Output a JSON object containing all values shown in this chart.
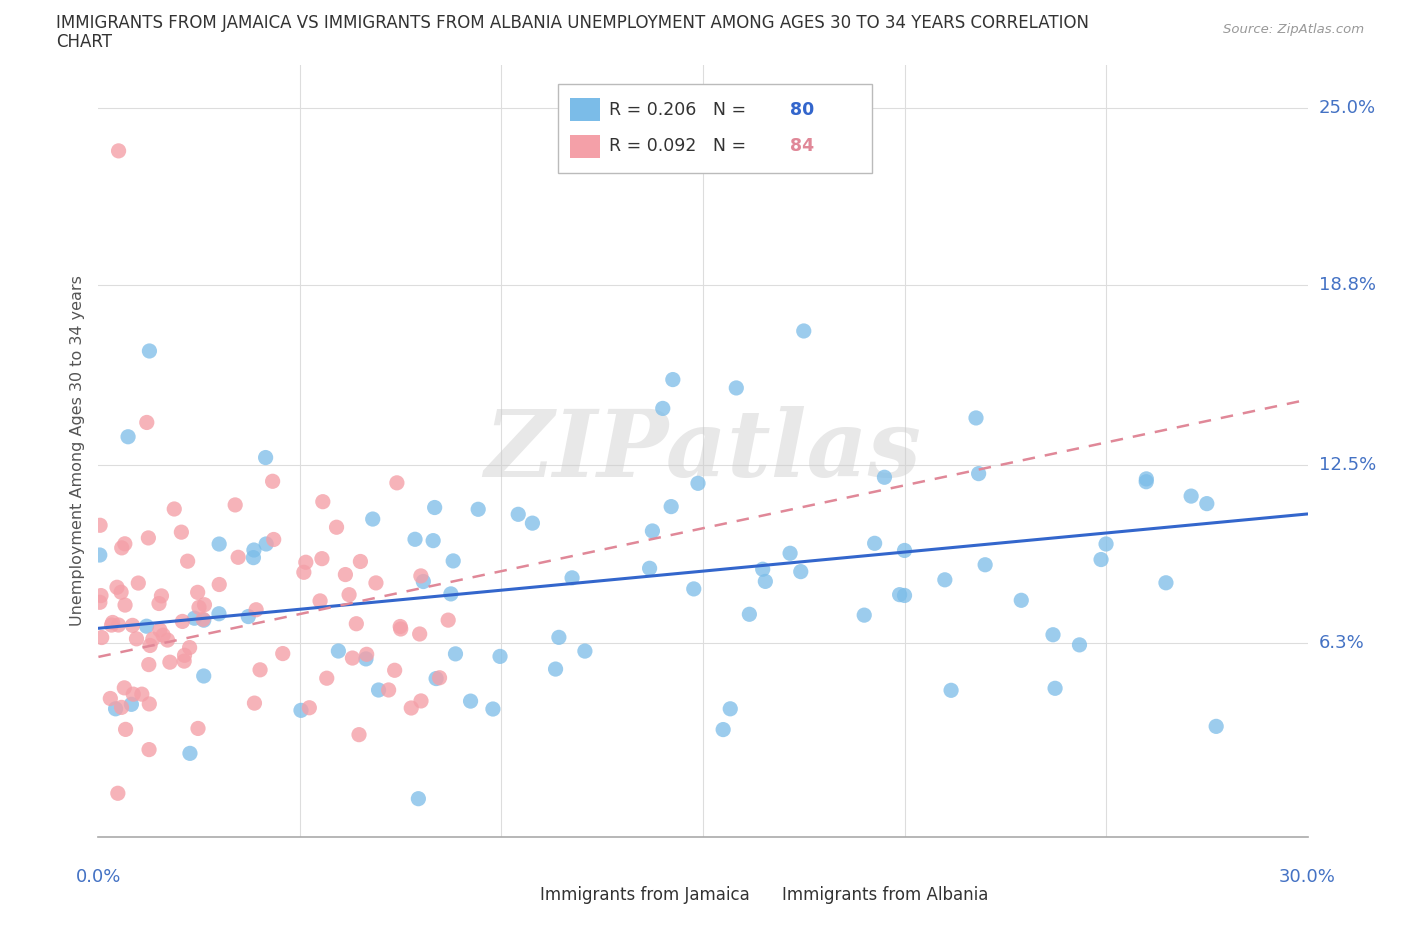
{
  "title_line1": "IMMIGRANTS FROM JAMAICA VS IMMIGRANTS FROM ALBANIA UNEMPLOYMENT AMONG AGES 30 TO 34 YEARS CORRELATION",
  "title_line2": "CHART",
  "source": "Source: ZipAtlas.com",
  "ylabel": "Unemployment Among Ages 30 to 34 years",
  "xlim": [
    0.0,
    0.3
  ],
  "ylim": [
    -0.005,
    0.265
  ],
  "ytick_vals": [
    0.0,
    0.063,
    0.125,
    0.188,
    0.25
  ],
  "ytick_labels": [
    "",
    "6.3%",
    "12.5%",
    "18.8%",
    "25.0%"
  ],
  "xtick_label_left": "0.0%",
  "xtick_label_right": "30.0%",
  "jamaica_color": "#7bbce8",
  "albania_color": "#f4a0a8",
  "jamaica_trend_color": "#3366cc",
  "albania_trend_color": "#e08898",
  "jamaica_R": 0.206,
  "jamaica_N": 80,
  "albania_R": 0.092,
  "albania_N": 84,
  "watermark_text": "ZIPatlas",
  "legend_R_color": "#333333",
  "legend_N_jamaica_color": "#3366cc",
  "legend_N_albania_color": "#e08898",
  "background_color": "#ffffff",
  "grid_color": "#dddddd"
}
